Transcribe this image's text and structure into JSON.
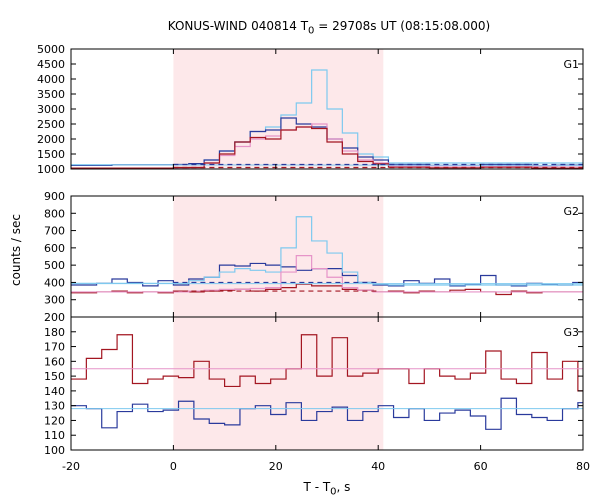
{
  "title": "KONUS-WIND 040814 T0 = 29708s UT (08:15:08.000)",
  "title_parts": {
    "pre": "KONUS-WIND 040814 T",
    "sub": "0",
    "post": " = 29708s UT (08:15:08.000)"
  },
  "ylabel": "counts / sec",
  "xlabel_parts": {
    "pre": "T - T",
    "sub": "0",
    "post": ", s"
  },
  "colors": {
    "shade": "#fde8ea",
    "dark_blue": "#2a3a9c",
    "light_blue": "#7ec9ef",
    "dark_red": "#a31621",
    "pink": "#e694c8"
  },
  "chart_data": {
    "type": "line",
    "xlim": [
      -20,
      80
    ],
    "xticks": [
      -20,
      0,
      20,
      40,
      60,
      80
    ],
    "shaded_interval": [
      0,
      41
    ],
    "panels": [
      {
        "label": "G1",
        "ylim": [
          1000,
          5000
        ],
        "yticks": [
          1000,
          1500,
          2000,
          2500,
          3000,
          3500,
          4000,
          4500,
          5000
        ],
        "series": [
          {
            "style": "step",
            "color": "light_blue",
            "x": [
              -20,
              6,
              9,
              12,
              15,
              18,
              21,
              24,
              27,
              30,
              33,
              36,
              39,
              42,
              80
            ],
            "y": [
              1140,
              1300,
              1600,
              1900,
              2250,
              2400,
              2800,
              3200,
              4300,
              3000,
              2200,
              1500,
              1400,
              1200,
              1120
            ]
          },
          {
            "style": "step",
            "color": "dark_blue",
            "x": [
              -20,
              -12,
              0,
              3,
              6,
              9,
              12,
              15,
              18,
              21,
              24,
              27,
              30,
              33,
              36,
              39,
              42,
              50,
              60,
              70,
              75,
              80
            ],
            "y": [
              1120,
              1140,
              1150,
              1180,
              1300,
              1600,
              1900,
              2250,
              2300,
              2700,
              2500,
              2400,
              2000,
              1700,
              1400,
              1300,
              1150,
              1120,
              1150,
              1100,
              1130,
              1150
            ]
          },
          {
            "style": "step",
            "color": "pink",
            "x": [
              -20,
              3,
              6,
              9,
              12,
              15,
              18,
              21,
              24,
              27,
              30,
              33,
              36,
              39,
              42,
              80
            ],
            "y": [
              1010,
              1050,
              1200,
              1450,
              1750,
              2000,
              2100,
              2300,
              2400,
              2500,
              2000,
              1600,
              1300,
              1200,
              1100,
              1060
            ]
          },
          {
            "style": "step",
            "color": "dark_red",
            "x": [
              -20,
              0,
              6,
              9,
              12,
              15,
              18,
              21,
              24,
              27,
              30,
              33,
              36,
              39,
              42,
              50,
              60,
              70,
              80
            ],
            "y": [
              1030,
              1050,
              1200,
              1500,
              1900,
              2050,
              2000,
              2300,
              2400,
              2350,
              1900,
              1500,
              1250,
              1170,
              1060,
              1040,
              1060,
              1030,
              1050
            ]
          },
          {
            "style": "flat",
            "color": "light_blue",
            "x": [
              -20,
              80
            ],
            "y": [
              1140,
              1120
            ]
          },
          {
            "style": "dashed",
            "color": "dark_blue",
            "x": [
              0,
              80
            ],
            "y": [
              1150,
              1150
            ]
          },
          {
            "style": "dashed",
            "color": "dark_red",
            "x": [
              0,
              80
            ],
            "y": [
              1050,
              1050
            ]
          }
        ]
      },
      {
        "label": "G2",
        "ylim": [
          200,
          900
        ],
        "yticks": [
          200,
          300,
          400,
          500,
          600,
          700,
          800,
          900
        ],
        "series": [
          {
            "style": "step",
            "color": "dark_blue",
            "x": [
              -20,
              -15,
              -12,
              -9,
              -6,
              -3,
              0,
              3,
              6,
              9,
              12,
              15,
              18,
              21,
              24,
              27,
              30,
              33,
              36,
              39,
              42,
              45,
              48,
              51,
              54,
              57,
              60,
              63,
              66,
              69,
              72,
              75,
              78,
              80
            ],
            "y": [
              385,
              395,
              420,
              400,
              380,
              410,
              385,
              420,
              430,
              500,
              495,
              510,
              500,
              490,
              470,
              480,
              480,
              440,
              400,
              385,
              380,
              410,
              395,
              420,
              380,
              390,
              440,
              385,
              380,
              395,
              390,
              385,
              400,
              395
            ]
          },
          {
            "style": "step",
            "color": "light_blue",
            "x": [
              -20,
              3,
              6,
              9,
              12,
              15,
              18,
              21,
              24,
              27,
              30,
              33,
              36,
              39,
              42,
              80
            ],
            "y": [
              395,
              410,
              430,
              460,
              480,
              470,
              460,
              600,
              780,
              640,
              570,
              460,
              400,
              390,
              385,
              390
            ]
          },
          {
            "style": "step",
            "color": "dark_red",
            "x": [
              -20,
              -15,
              -12,
              -9,
              -6,
              -3,
              0,
              3,
              6,
              9,
              12,
              15,
              18,
              21,
              24,
              27,
              30,
              33,
              36,
              39,
              42,
              45,
              48,
              51,
              54,
              57,
              60,
              63,
              66,
              69,
              72,
              80
            ],
            "y": [
              340,
              345,
              350,
              340,
              345,
              340,
              350,
              345,
              350,
              355,
              360,
              350,
              360,
              370,
              390,
              380,
              380,
              360,
              355,
              345,
              350,
              340,
              350,
              345,
              355,
              360,
              345,
              330,
              350,
              340,
              345,
              345
            ]
          },
          {
            "style": "step",
            "color": "pink",
            "x": [
              -20,
              3,
              6,
              9,
              12,
              15,
              18,
              21,
              24,
              27,
              30,
              33,
              36,
              39,
              80
            ],
            "y": [
              345,
              350,
              355,
              360,
              360,
              365,
              370,
              460,
              555,
              480,
              430,
              370,
              355,
              345,
              345
            ]
          },
          {
            "style": "flat",
            "color": "light_blue",
            "x": [
              -20,
              80
            ],
            "y": [
              393,
              393
            ]
          },
          {
            "style": "dashed",
            "color": "dark_blue",
            "x": [
              0,
              40
            ],
            "y": [
              400,
              400
            ]
          },
          {
            "style": "dashed",
            "color": "dark_red",
            "x": [
              0,
              40
            ],
            "y": [
              350,
              350
            ]
          }
        ]
      },
      {
        "label": "G3",
        "ylim": [
          100,
          190
        ],
        "yticks": [
          100,
          110,
          120,
          130,
          140,
          150,
          160,
          170,
          180
        ],
        "series": [
          {
            "style": "step",
            "color": "dark_red",
            "x": [
              -20,
              -17,
              -14,
              -11,
              -8,
              -5,
              -2,
              1,
              4,
              7,
              10,
              13,
              16,
              19,
              22,
              25,
              28,
              31,
              34,
              37,
              40,
              43,
              46,
              49,
              52,
              55,
              58,
              61,
              64,
              67,
              70,
              73,
              76,
              79,
              80
            ],
            "y": [
              148,
              162,
              168,
              178,
              145,
              148,
              150,
              149,
              160,
              148,
              143,
              150,
              145,
              148,
              155,
              178,
              150,
              176,
              150,
              152,
              155,
              155,
              145,
              155,
              150,
              148,
              152,
              167,
              148,
              145,
              166,
              148,
              160,
              140,
              140
            ]
          },
          {
            "style": "step",
            "color": "dark_blue",
            "x": [
              -20,
              -17,
              -14,
              -11,
              -8,
              -5,
              -2,
              1,
              4,
              7,
              10,
              13,
              16,
              19,
              22,
              25,
              28,
              31,
              34,
              37,
              40,
              43,
              46,
              49,
              52,
              55,
              58,
              61,
              64,
              67,
              70,
              73,
              76,
              79,
              80
            ],
            "y": [
              130,
              128,
              115,
              126,
              131,
              126,
              127,
              133,
              121,
              118,
              117,
              128,
              130,
              124,
              132,
              120,
              126,
              129,
              120,
              126,
              130,
              122,
              128,
              120,
              125,
              127,
              123,
              114,
              135,
              124,
              122,
              120,
              128,
              132,
              132
            ]
          },
          {
            "style": "flat",
            "color": "pink",
            "x": [
              -20,
              80
            ],
            "y": [
              155,
              155
            ]
          },
          {
            "style": "flat",
            "color": "light_blue",
            "x": [
              -20,
              80
            ],
            "y": [
              128,
              128
            ]
          }
        ]
      }
    ]
  }
}
